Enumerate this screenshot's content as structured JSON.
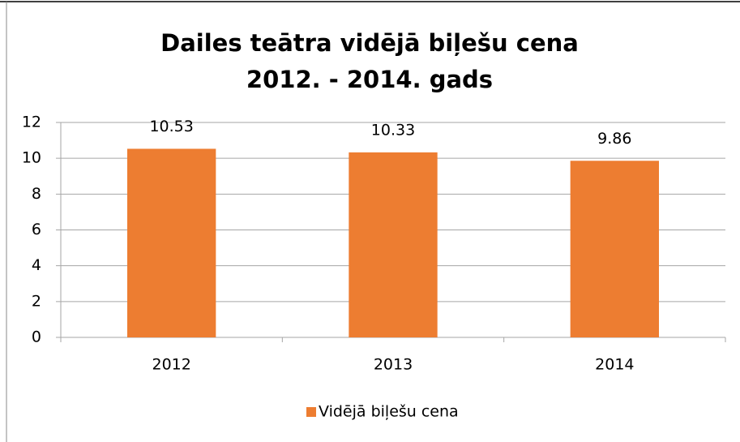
{
  "chart_data": {
    "type": "bar",
    "title": "Dailes teātra vidējā biļešu cena",
    "subtitle": "2012. - 2014. gads",
    "categories": [
      "2012",
      "2013",
      "2014"
    ],
    "series": [
      {
        "name": "Vidējā biļešu cena",
        "color": "#ed7d31",
        "values": [
          10.53,
          10.33,
          9.86
        ]
      }
    ],
    "ylim": [
      0,
      12
    ],
    "yticks": [
      0,
      2,
      4,
      6,
      8,
      10,
      12
    ],
    "grid": true,
    "legend": "bottom"
  }
}
